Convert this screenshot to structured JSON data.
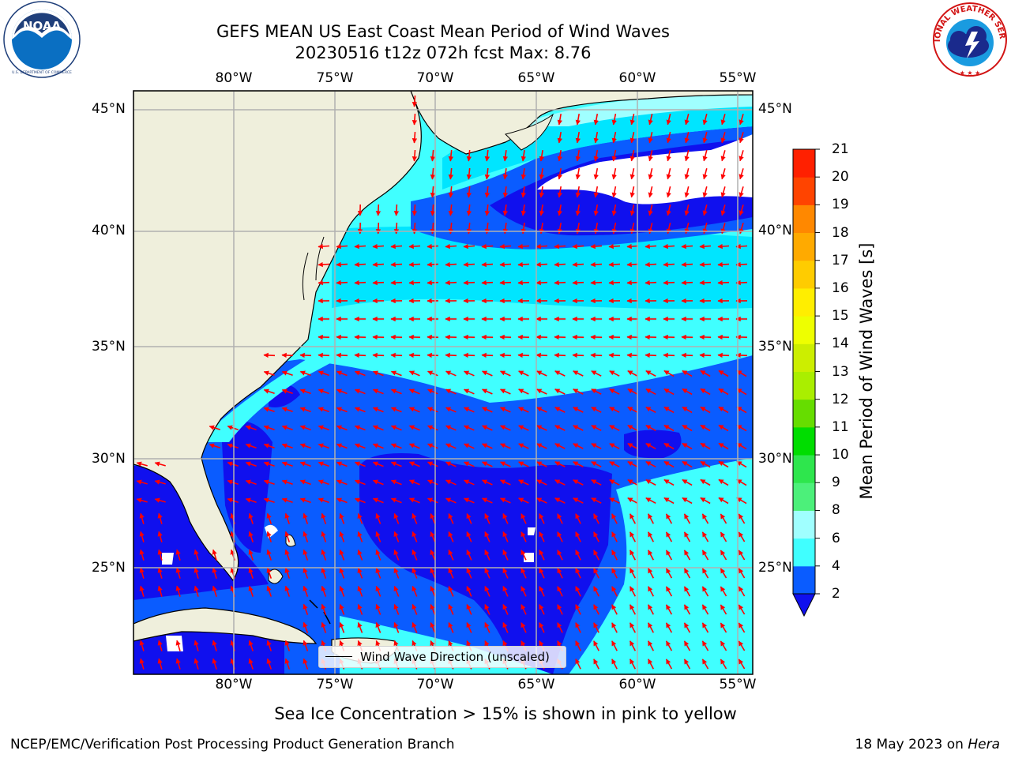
{
  "title": {
    "line1": "GEFS MEAN US East Coast Mean Period of Wind Waves",
    "line2": "20230516 t12z 072h fcst   Max: 8.76"
  },
  "logos": {
    "left": {
      "icon": "noaa-logo",
      "text": "NOAA",
      "ring_text": "NATIONAL OCEANIC AND ATMOSPHERIC ADMINISTRATION · U.S. DEPARTMENT OF COMMERCE"
    },
    "right": {
      "icon": "nws-logo",
      "ring_text": "NATIONAL WEATHER SERVICE"
    }
  },
  "map": {
    "lon_range": [
      -85,
      -54.3
    ],
    "lat_range": [
      20.5,
      46
    ],
    "longitude_ticks": [
      "80°W",
      "75°W",
      "70°W",
      "65°W",
      "60°W",
      "55°W"
    ],
    "latitude_ticks": [
      "45°N",
      "40°N",
      "35°N",
      "30°N",
      "25°N"
    ],
    "grid": true,
    "land_color": "#efefdc",
    "coastline_color": "#000000",
    "arrow_color": "#ff0000",
    "legend": {
      "label": "Wind Wave Direction (unscaled)",
      "placement": "bottom-center"
    }
  },
  "colorbar": {
    "label": "Mean Period of Wind Waves [s]",
    "ticks": [
      "2",
      "4",
      "6",
      "8",
      "9",
      "10",
      "11",
      "12",
      "13",
      "14",
      "15",
      "16",
      "17",
      "18",
      "19",
      "20",
      "21"
    ],
    "colors": [
      "#0a5cff",
      "#00e5ff",
      "#40ffff",
      "#a0ffff",
      "#4cf07a",
      "#2ee64d",
      "#00dd00",
      "#66dd00",
      "#aaee00",
      "#ccee00",
      "#eeff00",
      "#ffee00",
      "#ffcc00",
      "#ffaa00",
      "#ff8800",
      "#ff4400",
      "#ff2000",
      "#ff0000"
    ],
    "under_color": "#1010ee",
    "extend": "min"
  },
  "note": "Sea Ice Concentration > 15% is shown in pink to yellow",
  "footer": {
    "left": "NCEP/EMC/Verification Post Processing Product Generation Branch",
    "right_date": "18 May 2023 on",
    "right_host": "Hera"
  }
}
